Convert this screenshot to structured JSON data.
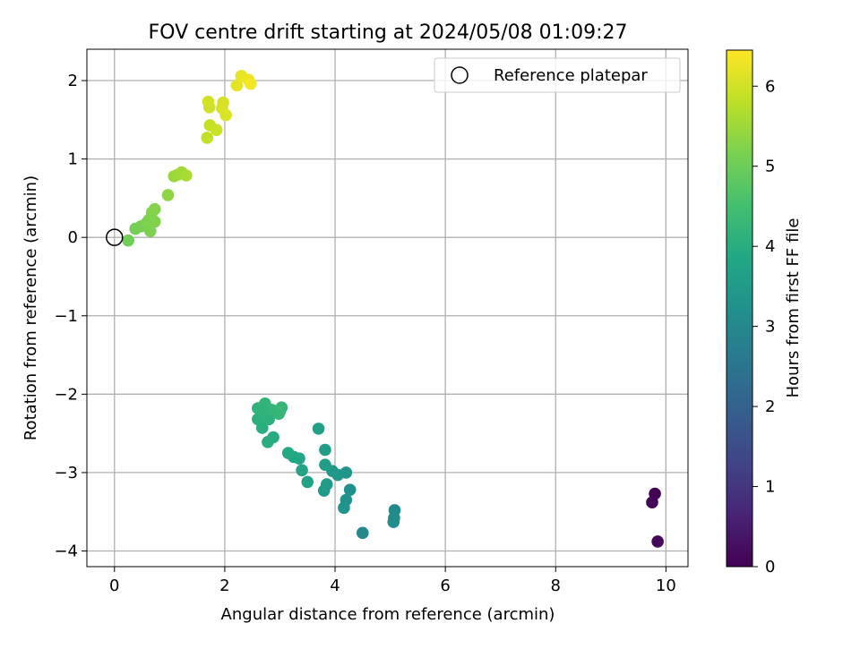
{
  "chart_data": {
    "type": "scatter",
    "title": "FOV centre drift starting at 2024/05/08 01:09:27",
    "xlabel": "Angular distance from reference (arcmin)",
    "ylabel": "Rotation from reference (arcmin)",
    "xlim": [
      -0.5,
      10.4
    ],
    "ylim": [
      -4.2,
      2.4
    ],
    "xticks": [
      0,
      2,
      4,
      6,
      8,
      10
    ],
    "xtick_labels": [
      "0",
      "2",
      "4",
      "6",
      "8",
      "10"
    ],
    "yticks": [
      2,
      1,
      0,
      -1,
      -2,
      -3,
      -4
    ],
    "ytick_labels": [
      "2",
      "1",
      "0",
      "−1",
      "−2",
      "−3",
      "−4"
    ],
    "grid": true,
    "legend": {
      "position": "top-right",
      "entries": [
        "Reference platepar"
      ]
    },
    "reference_point": {
      "x": 0,
      "y": 0,
      "marker": "open-circle"
    },
    "colorbar": {
      "label": "Hours from first FF file",
      "range": [
        0,
        6.45
      ],
      "ticks": [
        0,
        1,
        2,
        3,
        4,
        5,
        6
      ],
      "tick_labels": [
        "0",
        "1",
        "2",
        "3",
        "4",
        "5",
        "6"
      ],
      "colormap": "viridis"
    },
    "points": [
      {
        "x": 9.8,
        "y": -3.27,
        "t": 0.0
      },
      {
        "x": 9.75,
        "y": -3.38,
        "t": 0.08
      },
      {
        "x": 9.85,
        "y": -3.88,
        "t": 0.15
      },
      {
        "x": 4.5,
        "y": -3.77,
        "t": 3.0
      },
      {
        "x": 5.08,
        "y": -3.48,
        "t": 3.05
      },
      {
        "x": 5.07,
        "y": -3.58,
        "t": 3.07
      },
      {
        "x": 5.06,
        "y": -3.63,
        "t": 3.1
      },
      {
        "x": 4.27,
        "y": -3.22,
        "t": 3.2
      },
      {
        "x": 4.2,
        "y": -3.35,
        "t": 3.25
      },
      {
        "x": 4.16,
        "y": -3.45,
        "t": 3.28
      },
      {
        "x": 4.2,
        "y": -3.0,
        "t": 3.35
      },
      {
        "x": 4.05,
        "y": -3.03,
        "t": 3.4
      },
      {
        "x": 3.95,
        "y": -2.98,
        "t": 3.45
      },
      {
        "x": 3.85,
        "y": -3.15,
        "t": 3.5
      },
      {
        "x": 3.8,
        "y": -3.23,
        "t": 3.53
      },
      {
        "x": 3.82,
        "y": -2.9,
        "t": 3.56
      },
      {
        "x": 3.82,
        "y": -2.71,
        "t": 3.6
      },
      {
        "x": 3.7,
        "y": -2.44,
        "t": 3.65
      },
      {
        "x": 3.5,
        "y": -3.12,
        "t": 3.7
      },
      {
        "x": 3.4,
        "y": -2.97,
        "t": 3.75
      },
      {
        "x": 3.35,
        "y": -2.82,
        "t": 3.8
      },
      {
        "x": 3.25,
        "y": -2.8,
        "t": 3.85
      },
      {
        "x": 3.15,
        "y": -2.75,
        "t": 3.9
      },
      {
        "x": 2.88,
        "y": -2.55,
        "t": 3.95
      },
      {
        "x": 2.78,
        "y": -2.61,
        "t": 4.0
      },
      {
        "x": 2.68,
        "y": -2.43,
        "t": 4.03
      },
      {
        "x": 2.6,
        "y": -2.32,
        "t": 4.06
      },
      {
        "x": 2.8,
        "y": -2.32,
        "t": 4.09
      },
      {
        "x": 2.72,
        "y": -2.25,
        "t": 4.12
      },
      {
        "x": 2.6,
        "y": -2.18,
        "t": 4.15
      },
      {
        "x": 2.73,
        "y": -2.12,
        "t": 4.18
      },
      {
        "x": 2.85,
        "y": -2.2,
        "t": 4.2
      },
      {
        "x": 2.98,
        "y": -2.25,
        "t": 4.22
      },
      {
        "x": 3.0,
        "y": -2.22,
        "t": 4.24
      },
      {
        "x": 3.03,
        "y": -2.17,
        "t": 4.26
      },
      {
        "x": 0.25,
        "y": -0.04,
        "t": 5.05
      },
      {
        "x": 0.38,
        "y": 0.11,
        "t": 5.1
      },
      {
        "x": 0.48,
        "y": 0.14,
        "t": 5.13
      },
      {
        "x": 0.58,
        "y": 0.18,
        "t": 5.16
      },
      {
        "x": 0.65,
        "y": 0.08,
        "t": 5.18
      },
      {
        "x": 0.62,
        "y": 0.22,
        "t": 5.2
      },
      {
        "x": 0.73,
        "y": 0.2,
        "t": 5.22
      },
      {
        "x": 0.68,
        "y": 0.32,
        "t": 5.24
      },
      {
        "x": 0.73,
        "y": 0.36,
        "t": 5.26
      },
      {
        "x": 0.97,
        "y": 0.54,
        "t": 5.35
      },
      {
        "x": 1.08,
        "y": 0.78,
        "t": 5.45
      },
      {
        "x": 1.15,
        "y": 0.8,
        "t": 5.5
      },
      {
        "x": 1.22,
        "y": 0.83,
        "t": 5.55
      },
      {
        "x": 1.3,
        "y": 0.79,
        "t": 5.6
      },
      {
        "x": 1.68,
        "y": 1.27,
        "t": 5.85
      },
      {
        "x": 1.73,
        "y": 1.43,
        "t": 5.9
      },
      {
        "x": 1.85,
        "y": 1.37,
        "t": 5.95
      },
      {
        "x": 1.72,
        "y": 1.66,
        "t": 6.0
      },
      {
        "x": 1.7,
        "y": 1.73,
        "t": 6.02
      },
      {
        "x": 1.95,
        "y": 1.65,
        "t": 6.05
      },
      {
        "x": 1.97,
        "y": 1.72,
        "t": 6.07
      },
      {
        "x": 2.02,
        "y": 1.56,
        "t": 6.1
      },
      {
        "x": 2.22,
        "y": 1.94,
        "t": 6.2
      },
      {
        "x": 2.3,
        "y": 2.06,
        "t": 6.25
      },
      {
        "x": 2.43,
        "y": 2.01,
        "t": 6.3
      },
      {
        "x": 2.47,
        "y": 1.96,
        "t": 6.35
      }
    ]
  }
}
